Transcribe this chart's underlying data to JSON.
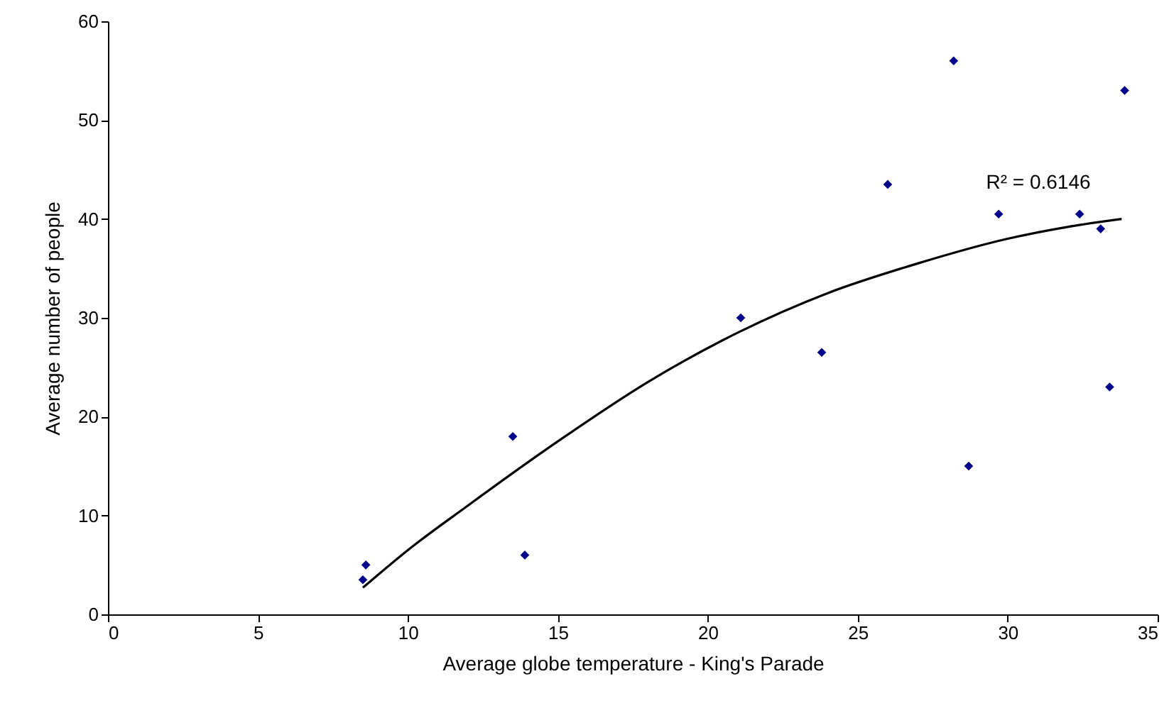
{
  "chart_data": {
    "type": "scatter",
    "xlabel": "Average globe temperature - King's Parade",
    "ylabel": "Average number of people",
    "xlim": [
      0,
      35
    ],
    "xticks": [
      0,
      5,
      10,
      15,
      20,
      25,
      30,
      35
    ],
    "ylim": [
      0,
      60
    ],
    "yticks": [
      0,
      10,
      20,
      30,
      40,
      50,
      60
    ],
    "grid": false,
    "series": [
      {
        "marker": "diamond",
        "color": "#00008b",
        "x": [
          8.6,
          8.5,
          13.5,
          13.9,
          21.1,
          23.8,
          26.0,
          28.2,
          28.7,
          29.7,
          32.4,
          33.1,
          33.4,
          33.9
        ],
        "values": [
          5.0,
          3.5,
          18.0,
          6.0,
          30.0,
          26.5,
          43.5,
          56.0,
          15.0,
          40.5,
          40.5,
          39.0,
          23.0,
          53.0
        ]
      },
      {
        "type": "line",
        "color": "#000000",
        "line_style": "solid",
        "x": [
          8.5,
          10,
          12,
          15,
          18,
          21,
          24,
          27,
          30,
          32,
          33.8
        ],
        "values": [
          2.7,
          6.5,
          11.0,
          17.5,
          23.5,
          28.5,
          32.5,
          35.5,
          38.0,
          39.2,
          40.0
        ]
      }
    ],
    "annotations": [
      "R² = 0.6146"
    ]
  }
}
